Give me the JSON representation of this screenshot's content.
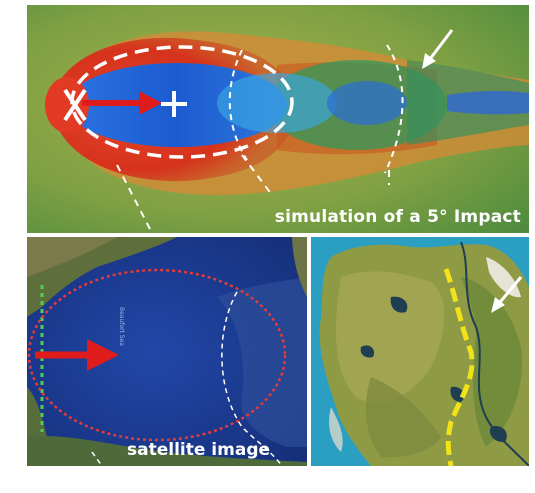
{
  "panels": {
    "top": {
      "caption": "simulation of a 5° Impact"
    },
    "bottom_left": {
      "caption": "satellite image",
      "map_label": "Beaufort Sea"
    },
    "bottom_right": {
      "caption": ""
    }
  },
  "colors": {
    "sim_background": "#6f9a3b",
    "sim_red": "#d9341e",
    "sim_blue": "#1f5fd0",
    "sea_blue": "#1c3f9a",
    "ellipse_red": "#e33a3a",
    "dashed_yellow": "#f2e21a",
    "arrow_white": "#ffffff",
    "arrow_red": "#e01b1b"
  }
}
